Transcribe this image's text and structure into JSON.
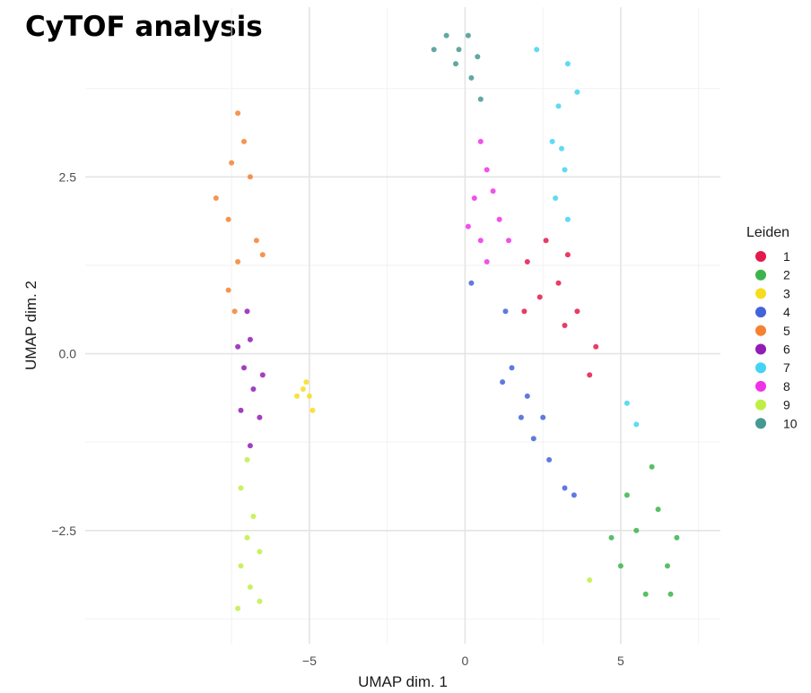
{
  "page": {
    "title": "CyTOF analysis"
  },
  "chart_data": {
    "type": "scatter",
    "xlabel": "UMAP dim. 1",
    "ylabel": "UMAP dim. 2",
    "xlim": [
      -12.2,
      8.2
    ],
    "ylim": [
      -4.1,
      4.9
    ],
    "x_ticks": [
      -5,
      0,
      5
    ],
    "x_tick_labels": [
      "−5",
      "0",
      "5"
    ],
    "y_ticks": [
      -2.5,
      0,
      2.5
    ],
    "y_tick_labels": [
      "−2.5",
      "0.0",
      "2.5"
    ],
    "grid": true,
    "legend": {
      "title": "Leiden",
      "position": "right"
    },
    "series": [
      {
        "name": "1",
        "color": "#E31A4B",
        "points": [
          [
            2,
            1.3
          ],
          [
            3,
            1.0
          ],
          [
            3.6,
            0.6
          ],
          [
            4.2,
            0.1
          ],
          [
            2.6,
            1.6
          ],
          [
            3.2,
            0.4
          ],
          [
            2.4,
            0.8
          ],
          [
            4,
            -0.3
          ],
          [
            3.3,
            1.4
          ],
          [
            1.9,
            0.6
          ]
        ]
      },
      {
        "name": "2",
        "color": "#3CB44B",
        "points": [
          [
            5.5,
            -2.5
          ],
          [
            6.2,
            -2.2
          ],
          [
            5,
            -3
          ],
          [
            6.5,
            -3
          ],
          [
            5.8,
            -3.4
          ],
          [
            6.8,
            -2.6
          ],
          [
            5.2,
            -2.0
          ],
          [
            4.7,
            -2.6
          ],
          [
            6,
            -1.6
          ],
          [
            6.6,
            -3.4
          ]
        ]
      },
      {
        "name": "3",
        "color": "#F7DC1E",
        "points": [
          [
            -5.1,
            -0.4
          ],
          [
            -5,
            -0.6
          ],
          [
            -5.2,
            -0.5
          ],
          [
            -4.9,
            -0.8
          ],
          [
            -5.4,
            -0.6
          ]
        ]
      },
      {
        "name": "4",
        "color": "#4363D8",
        "points": [
          [
            1.2,
            -0.4
          ],
          [
            1.8,
            -0.9
          ],
          [
            2.2,
            -1.2
          ],
          [
            2.7,
            -1.5
          ],
          [
            3.2,
            -1.9
          ],
          [
            1.5,
            -0.2
          ],
          [
            2.0,
            -0.6
          ],
          [
            2.5,
            -0.9
          ],
          [
            1.3,
            0.6
          ],
          [
            0.2,
            1.0
          ],
          [
            3.5,
            -2.0
          ]
        ]
      },
      {
        "name": "5",
        "color": "#F58231",
        "points": [
          [
            -7.3,
            3.4
          ],
          [
            -7.1,
            3.0
          ],
          [
            -7.5,
            2.7
          ],
          [
            -8.0,
            2.2
          ],
          [
            -7.6,
            1.9
          ],
          [
            -6.7,
            1.6
          ],
          [
            -7.3,
            1.3
          ],
          [
            -7.6,
            0.9
          ],
          [
            -7.4,
            0.6
          ],
          [
            -6.9,
            2.5
          ],
          [
            -6.5,
            1.4
          ]
        ]
      },
      {
        "name": "6",
        "color": "#911EB4",
        "points": [
          [
            -7.0,
            0.6
          ],
          [
            -6.9,
            0.2
          ],
          [
            -7.1,
            -0.2
          ],
          [
            -6.8,
            -0.5
          ],
          [
            -7.2,
            -0.8
          ],
          [
            -6.6,
            -0.9
          ],
          [
            -6.9,
            -1.3
          ],
          [
            -7.3,
            0.1
          ],
          [
            -6.5,
            -0.3
          ]
        ]
      },
      {
        "name": "7",
        "color": "#42D4F4",
        "points": [
          [
            3.0,
            3.5
          ],
          [
            3.3,
            4.1
          ],
          [
            3.6,
            3.7
          ],
          [
            2.8,
            3.0
          ],
          [
            3.2,
            2.6
          ],
          [
            2.9,
            2.2
          ],
          [
            3.3,
            1.9
          ],
          [
            3.1,
            2.9
          ],
          [
            5.2,
            -0.7
          ],
          [
            5.5,
            -1.0
          ],
          [
            2.3,
            4.3
          ]
        ]
      },
      {
        "name": "8",
        "color": "#F032E6",
        "points": [
          [
            0.5,
            3.0
          ],
          [
            0.7,
            2.6
          ],
          [
            0.3,
            2.2
          ],
          [
            0.9,
            2.3
          ],
          [
            0.1,
            1.8
          ],
          [
            0.5,
            1.6
          ],
          [
            1.1,
            1.9
          ],
          [
            0.7,
            1.3
          ],
          [
            1.4,
            1.6
          ]
        ]
      },
      {
        "name": "9",
        "color": "#BFEF45",
        "points": [
          [
            -7.0,
            -1.5
          ],
          [
            -7.2,
            -1.9
          ],
          [
            -6.8,
            -2.3
          ],
          [
            -7.0,
            -2.6
          ],
          [
            -7.2,
            -3.0
          ],
          [
            -6.9,
            -3.3
          ],
          [
            -6.6,
            -3.5
          ],
          [
            -7.3,
            -3.6
          ],
          [
            -6.6,
            -2.8
          ],
          [
            4.0,
            -3.2
          ]
        ]
      },
      {
        "name": "10",
        "color": "#469990",
        "points": [
          [
            0.1,
            4.5
          ],
          [
            -0.2,
            4.3
          ],
          [
            -0.6,
            4.5
          ],
          [
            -1.0,
            4.3
          ],
          [
            0.4,
            4.2
          ],
          [
            0.2,
            3.9
          ],
          [
            0.5,
            3.6
          ],
          [
            -0.3,
            4.1
          ]
        ]
      }
    ]
  }
}
